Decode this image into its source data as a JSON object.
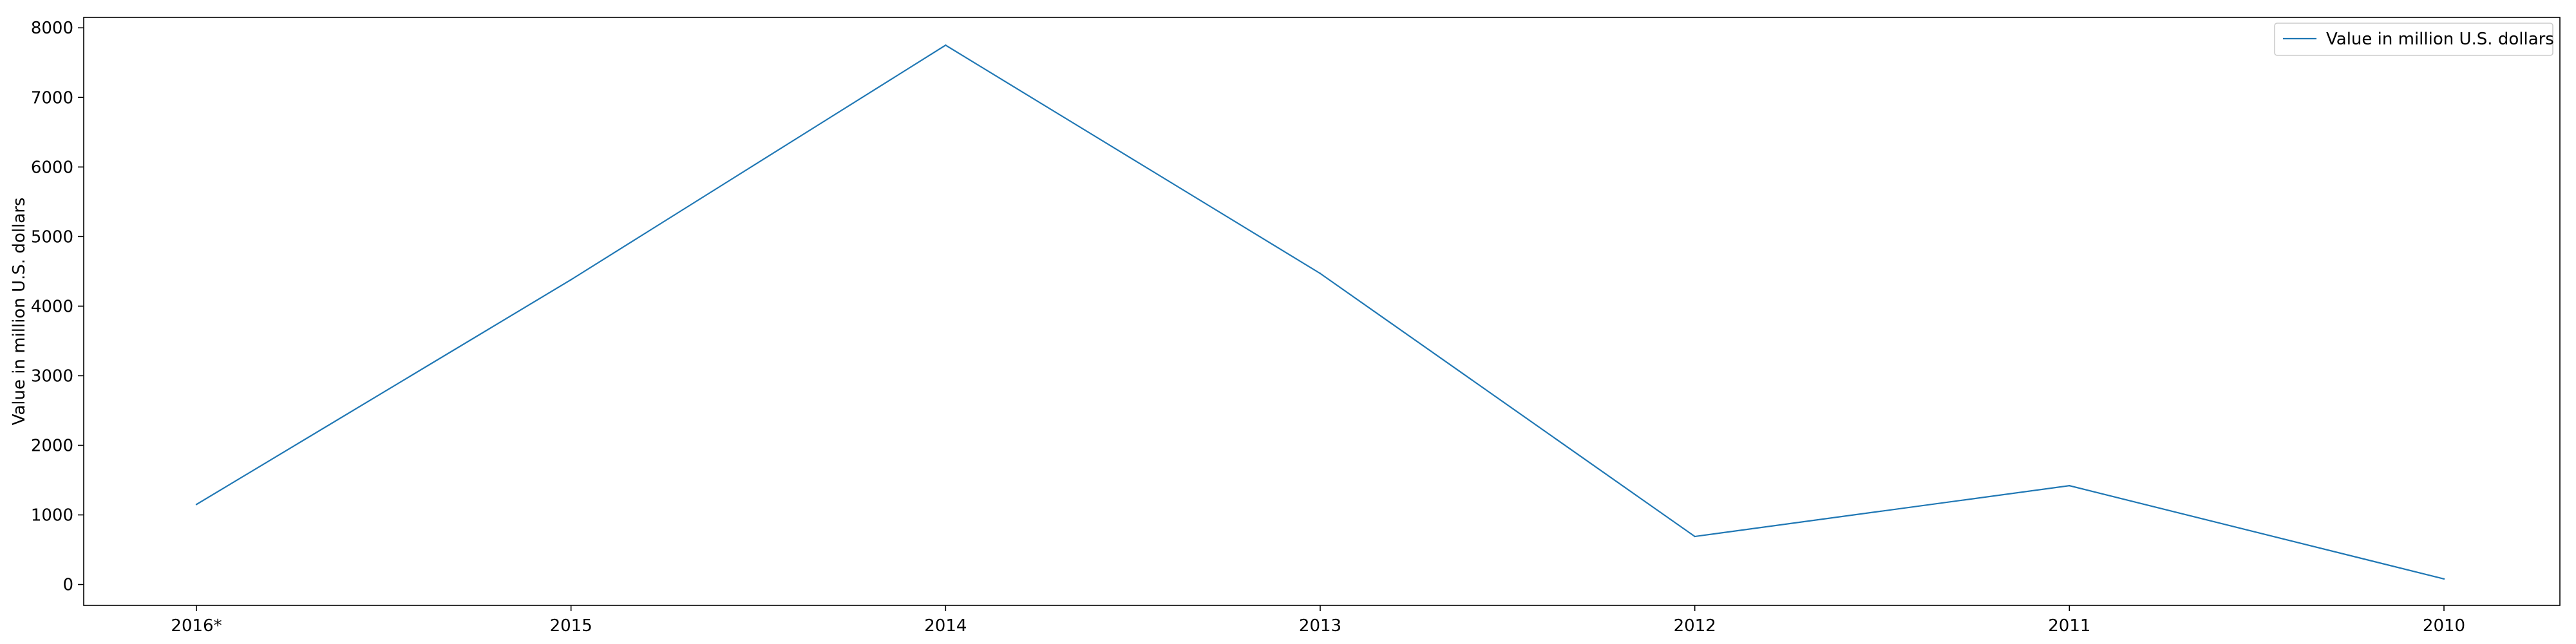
{
  "chart_data": {
    "type": "line",
    "title": "",
    "xlabel": "",
    "ylabel": "Value in million U.S. dollars",
    "categories": [
      "2016*",
      "2015",
      "2014",
      "2013",
      "2012",
      "2011",
      "2010"
    ],
    "series": [
      {
        "name": "Value in million U.S. dollars",
        "values": [
          1150,
          4380,
          7750,
          4470,
          690,
          1420,
          80
        ],
        "color": "#1f77b4"
      }
    ],
    "ylim": [
      -300,
      8150
    ],
    "yticks": [
      0,
      1000,
      2000,
      3000,
      4000,
      5000,
      6000,
      7000,
      8000
    ],
    "grid": false,
    "legend_position": "top-right"
  }
}
